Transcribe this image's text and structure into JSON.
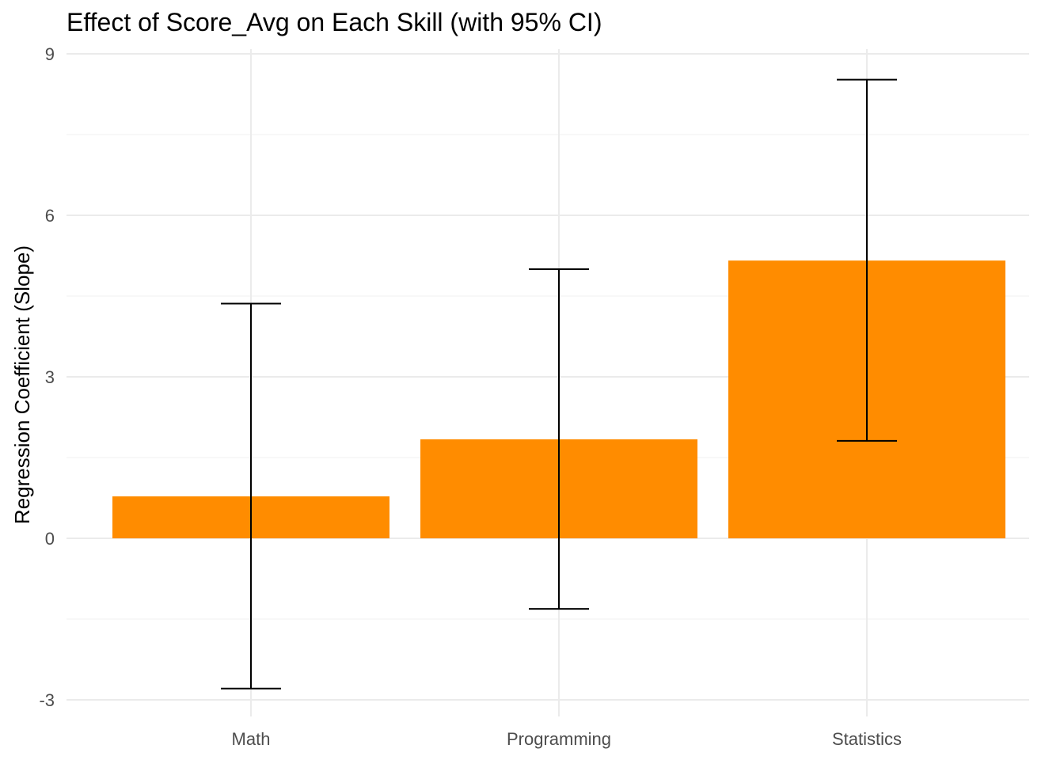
{
  "chart_data": {
    "type": "bar",
    "title": "Effect of Score_Avg on Each Skill (with 95% CI)",
    "xlabel": "",
    "ylabel": "Regression Coefficient (Slope)",
    "categories": [
      "Math",
      "Programming",
      "Statistics"
    ],
    "values": [
      0.78,
      1.84,
      5.16
    ],
    "ci_lower": [
      -2.79,
      -1.31,
      1.81
    ],
    "ci_upper": [
      4.36,
      5.0,
      8.52
    ],
    "ylim": [
      -3.3,
      9.1
    ],
    "yticks": [
      -3,
      0,
      3,
      6,
      9
    ],
    "ytick_labels": [
      "-3",
      "0",
      "3",
      "6",
      "9"
    ],
    "grid": true,
    "bar_color": "#FF8C00",
    "errorbar_color": "#000000"
  }
}
